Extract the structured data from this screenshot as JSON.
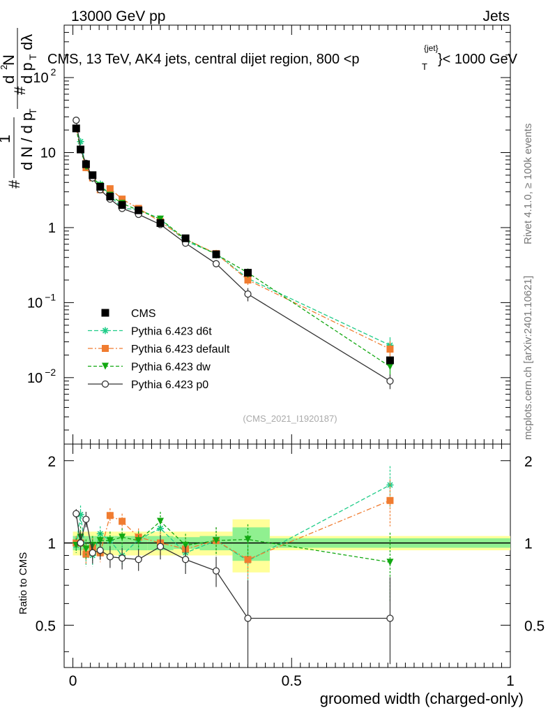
{
  "header": {
    "left": "13000 GeV pp",
    "right": "Jets",
    "rivet": "Rivet 4.1.0, ≥ 100k events",
    "mcplots": "mcplots.cern.ch [arXiv:2401.10621]",
    "analysis_id": "(CMS_2021_I1920187)"
  },
  "chart_data": {
    "type": "line",
    "title_main": "CMS, 13 TeV, AK4 jets, central dijet region, 800 <p",
    "title_sub": "T",
    "title_sup": "{jet}",
    "title_end": "}< 1000 GeV",
    "ylabel": "1/dN/dpT dN/dpT dλ",
    "ratio_ylabel": "Ratio to CMS",
    "xlabel": "groomed width (charged-only)",
    "xlim": [
      -0.02,
      1.0
    ],
    "ylim_log": [
      0.0013,
      500
    ],
    "ratio_ylim": [
      0.35,
      2.3
    ],
    "x_ticks": [
      "0",
      "0.5",
      "1"
    ],
    "x_tick_values": [
      0,
      0.5,
      1
    ],
    "ratio_ticks": [
      "0.5",
      "1",
      "2"
    ],
    "ratio_tick_values": [
      0.5,
      1,
      2
    ],
    "y_ticks": [
      {
        "value": 0.01,
        "mant": "10",
        "exp": "−2"
      },
      {
        "value": 0.1,
        "mant": "10",
        "exp": "−1"
      },
      {
        "value": 1,
        "mant": "1",
        "exp": ""
      },
      {
        "value": 10,
        "mant": "10",
        "exp": ""
      },
      {
        "value": 100,
        "mant": "10",
        "exp": "2"
      }
    ],
    "x": [
      0.0075,
      0.0175,
      0.03,
      0.045,
      0.0625,
      0.085,
      0.1125,
      0.15,
      0.2,
      0.2575,
      0.3275,
      0.4,
      0.725
    ],
    "bins": [
      [
        0.0,
        0.015
      ],
      [
        0.015,
        0.02
      ],
      [
        0.02,
        0.04
      ],
      [
        0.04,
        0.05
      ],
      [
        0.05,
        0.075
      ],
      [
        0.075,
        0.095
      ],
      [
        0.095,
        0.13
      ],
      [
        0.13,
        0.17
      ],
      [
        0.17,
        0.23
      ],
      [
        0.23,
        0.29
      ],
      [
        0.29,
        0.365
      ],
      [
        0.365,
        0.45
      ],
      [
        0.45,
        1.0
      ]
    ],
    "data": {
      "name": "CMS",
      "values": [
        21,
        11,
        7,
        5,
        3.5,
        2.6,
        2.0,
        1.7,
        1.15,
        0.72,
        0.44,
        0.25,
        0.017
      ],
      "band_inner": [
        0.06,
        0.06,
        0.06,
        0.06,
        0.06,
        0.06,
        0.06,
        0.06,
        0.06,
        0.05,
        0.06,
        0.14,
        0.04
      ],
      "band_outer": [
        0.1,
        0.1,
        0.1,
        0.1,
        0.1,
        0.1,
        0.1,
        0.1,
        0.1,
        0.1,
        0.1,
        0.22,
        0.06
      ]
    },
    "series": [
      {
        "name": "Pythia 6.423 d6t",
        "color": "#1fcc88",
        "marker": "star",
        "dash": "6,3",
        "values": [
          21,
          14,
          6.3,
          4.5,
          3.8,
          2.7,
          1.8,
          1.75,
          1.3,
          0.66,
          0.45,
          0.21,
          0.027
        ],
        "ratio": [
          0.98,
          1.27,
          0.9,
          0.9,
          1.08,
          1.02,
          0.9,
          1.03,
          1.13,
          0.92,
          1.02,
          0.86,
          1.63
        ],
        "ratio_err": [
          0.06,
          0.1,
          0.08,
          0.08,
          0.07,
          0.08,
          0.08,
          0.08,
          0.1,
          0.1,
          0.12,
          0.14,
          0.28
        ]
      },
      {
        "name": "Pythia 6.423 default",
        "color": "#f07c30",
        "marker": "square",
        "dash": "7,3,2,3",
        "values": [
          21,
          11,
          6.3,
          4.6,
          3.2,
          3.3,
          2.4,
          1.8,
          1.2,
          0.7,
          0.45,
          0.2,
          0.024
        ],
        "ratio": [
          1.0,
          1.0,
          0.91,
          0.96,
          0.92,
          1.26,
          1.2,
          1.05,
          1.0,
          0.95,
          1.02,
          0.87,
          1.43
        ],
        "ratio_err": [
          0.06,
          0.1,
          0.08,
          0.08,
          0.07,
          0.08,
          0.08,
          0.08,
          0.1,
          0.1,
          0.12,
          0.14,
          0.28
        ]
      },
      {
        "name": "Pythia 6.423 dw",
        "color": "#12a812",
        "marker": "tridown",
        "dash": "5,3",
        "values": [
          21,
          11,
          6.5,
          4.7,
          3.6,
          2.7,
          2.1,
          1.7,
          1.3,
          0.7,
          0.44,
          0.25,
          0.014
        ],
        "ratio": [
          0.98,
          1.05,
          0.95,
          0.98,
          1.02,
          1.02,
          1.05,
          1.02,
          1.2,
          0.98,
          1.02,
          1.03,
          0.85
        ],
        "ratio_err": [
          0.06,
          0.1,
          0.08,
          0.08,
          0.07,
          0.08,
          0.08,
          0.08,
          0.1,
          0.1,
          0.12,
          0.14,
          0.24
        ]
      },
      {
        "name": "Pythia 6.423 p0",
        "color": "#333333",
        "marker": "circle",
        "dash": "",
        "values": [
          27,
          11,
          7.2,
          4.6,
          3.2,
          2.4,
          1.8,
          1.5,
          1.1,
          0.62,
          0.33,
          0.13,
          0.009
        ],
        "ratio": [
          1.28,
          1.0,
          1.22,
          0.92,
          0.94,
          0.89,
          0.88,
          0.87,
          0.97,
          0.87,
          0.79,
          0.53,
          0.53
        ],
        "ratio_err": [
          0.05,
          0.1,
          0.08,
          0.08,
          0.07,
          0.08,
          0.08,
          0.08,
          0.1,
          0.1,
          0.1,
          0.2,
          0.22
        ]
      }
    ]
  }
}
